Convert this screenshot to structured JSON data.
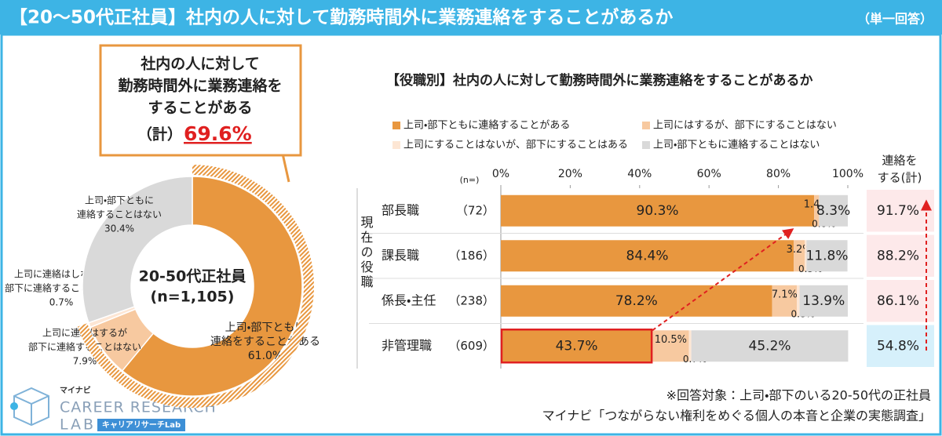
{
  "header": {
    "title": "【20～50代正社員】社内の人に対して勤務時間外に業務連絡をすることがあるか",
    "note": "（単一回答）"
  },
  "chart_data": [
    {
      "type": "pie",
      "donut": true,
      "center_label": [
        "20-50代正社員",
        "(n=1,105)"
      ],
      "categories": [
        [
          "上司・部下ともに",
          "連絡をすることがある"
        ],
        [
          "上司に連絡はするが",
          "部下に連絡することはない"
        ],
        [
          "上司に連絡はしないが",
          "部下に連絡することはある"
        ],
        [
          "上司・部下ともに",
          "連絡することはない"
        ]
      ],
      "values": [
        61.0,
        7.9,
        0.7,
        30.4
      ],
      "value_labels": [
        "61.0%",
        "7.9%",
        "0.7%",
        "30.4%"
      ],
      "colors": [
        "#e8973f",
        "#f7c9a0",
        "#fde6d4",
        "#d9d9d9"
      ],
      "callout": {
        "lines": [
          "社内の人に対して",
          "勤務時間外に業務連絡を",
          "することがある"
        ],
        "prefix": "（計）",
        "value": 69.6,
        "value_label": "69.6%",
        "color": "#e8973f"
      }
    },
    {
      "type": "bar",
      "orientation": "horizontal",
      "stacked": true,
      "title": "【役職別】社内の人に対して勤務時間外に業務連絡をすることがあるか",
      "y_label": "現在の役職",
      "sample_header": "(n=)",
      "categories": [
        "部長職",
        "課長職",
        "係長・主任",
        "非管理職"
      ],
      "sample_sizes": [
        "（72）",
        "（186）",
        "（238）",
        "（609）"
      ],
      "xlim": [
        0,
        100
      ],
      "xticks": [
        {
          "value": 0,
          "label": "0%"
        },
        {
          "value": 20,
          "label": "20%"
        },
        {
          "value": 40,
          "label": "40%"
        },
        {
          "value": 60,
          "label": "60%"
        },
        {
          "value": 80,
          "label": "80%"
        },
        {
          "value": 100,
          "label": "100%"
        }
      ],
      "grid": false,
      "series": [
        {
          "name": "上司・部下ともに連絡することがある",
          "color": "#e8973f",
          "values": [
            90.3,
            84.4,
            78.2,
            43.7
          ],
          "value_labels": [
            "90.3%",
            "84.4%",
            "78.2%",
            "43.7%"
          ]
        },
        {
          "name": "上司にはするが、部下にすることはない",
          "color": "#f7c9a0",
          "values": [
            1.4,
            3.2,
            7.1,
            10.5
          ],
          "value_labels": [
            "1.4%",
            "3.2%",
            "7.1%",
            "10.5%"
          ]
        },
        {
          "name": "上司にすることはないが、部下にすることはある",
          "color": "#fde6d4",
          "values": [
            0.0,
            0.5,
            0.8,
            0.7
          ],
          "value_labels": [
            "0.0%",
            "0.5%",
            "0.8%",
            "0.7%"
          ]
        },
        {
          "name": "上司・部下ともに連絡することはない",
          "color": "#d9d9d9",
          "values": [
            8.3,
            11.8,
            13.9,
            45.2
          ],
          "value_labels": [
            "8.3%",
            "11.8%",
            "13.9%",
            "45.2%"
          ]
        }
      ],
      "totals": {
        "title_lines": [
          "連絡を",
          "する(計)"
        ],
        "values": [
          91.7,
          88.2,
          86.1,
          54.8
        ],
        "value_labels": [
          "91.7%",
          "88.2%",
          "86.1%",
          "54.8%"
        ],
        "colors": [
          "#fde9ea",
          "#fde9ea",
          "#fde9ea",
          "#d6f0fb"
        ]
      },
      "highlight": {
        "series": 0,
        "index": 3,
        "color": "#e02020"
      }
    }
  ],
  "footer": {
    "notes": [
      "※回答対象：上司・部下のいる20-50代の正社員",
      "マイナビ「つながらない権利をめぐる個人の本音と企業の実態調査」"
    ]
  },
  "logo": {
    "brand": "マイナビ",
    "name_lines": [
      "CAREER RESEARCH",
      "LAB"
    ],
    "sub": "キャリアリサーチLab"
  }
}
